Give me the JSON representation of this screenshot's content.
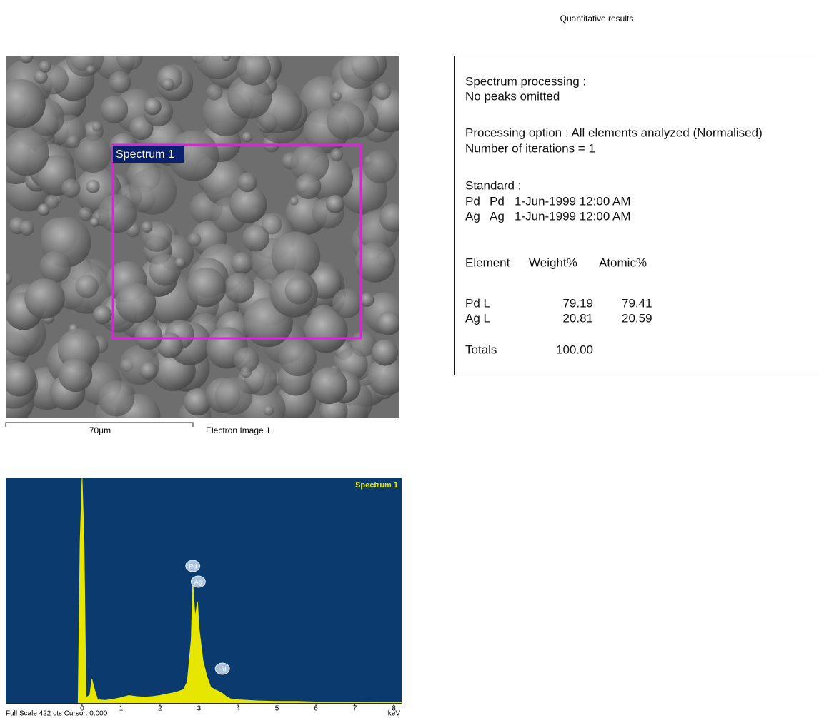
{
  "header": {
    "title": "Quantitative results"
  },
  "electron_image": {
    "spectrum_label": "Spectrum 1",
    "scale_bar": "70µm",
    "caption": "Electron Image 1"
  },
  "report": {
    "processing": [
      "Spectrum processing :",
      "No peaks omitted"
    ],
    "options": [
      "Processing option : All elements analyzed (Normalised)",
      "Number of iterations = 1"
    ],
    "standard": {
      "title": "Standard :",
      "rows": [
        [
          "Pd",
          "Pd",
          "1-Jun-1999 12:00 AM"
        ],
        [
          "Ag",
          "Ag",
          "1-Jun-1999 12:00 AM"
        ]
      ]
    },
    "table": {
      "header": [
        "Element",
        "Weight%",
        "Atomic%"
      ],
      "rows": [
        [
          "Pd L",
          "79.19",
          "79.41"
        ],
        [
          "Ag L",
          "20.81",
          "20.59"
        ]
      ],
      "totals": [
        "Totals",
        "100.00"
      ]
    }
  },
  "spectrum": {
    "type": "area",
    "title": "Spectrum 1",
    "color": "#e6e600",
    "x": [
      -0.1,
      -0.05,
      0,
      0.05,
      0.1,
      0.2,
      0.25,
      0.3,
      0.4,
      0.6,
      0.8,
      1.0,
      1.2,
      1.4,
      1.6,
      1.8,
      2.0,
      2.2,
      2.4,
      2.6,
      2.7,
      2.8,
      2.84,
      2.9,
      2.96,
      3.0,
      3.1,
      3.2,
      3.3,
      3.4,
      3.5,
      3.6,
      3.7,
      3.8,
      4.0,
      4.5,
      5,
      5.5,
      6,
      6.5,
      7,
      7.5,
      8,
      8.2
    ],
    "values": [
      0,
      300,
      422,
      300,
      10,
      15,
      45,
      30,
      6,
      5,
      7,
      10,
      14,
      12,
      11,
      12,
      14,
      17,
      20,
      25,
      40,
      120,
      228,
      160,
      190,
      140,
      80,
      50,
      30,
      25,
      22,
      18,
      12,
      8,
      6,
      4,
      3,
      3,
      2,
      2,
      2,
      1,
      1,
      1
    ],
    "xlim": [
      -1.96,
      8.2
    ],
    "ylim": [
      0,
      422
    ],
    "xticks": [
      0,
      1,
      2,
      3,
      4,
      5,
      6,
      7,
      8
    ],
    "x_unit": "keV",
    "footer": "Full Scale 422 cts Cursor: 0.000",
    "peak_labels": [
      "Pd",
      "Ag",
      "Pd"
    ]
  }
}
